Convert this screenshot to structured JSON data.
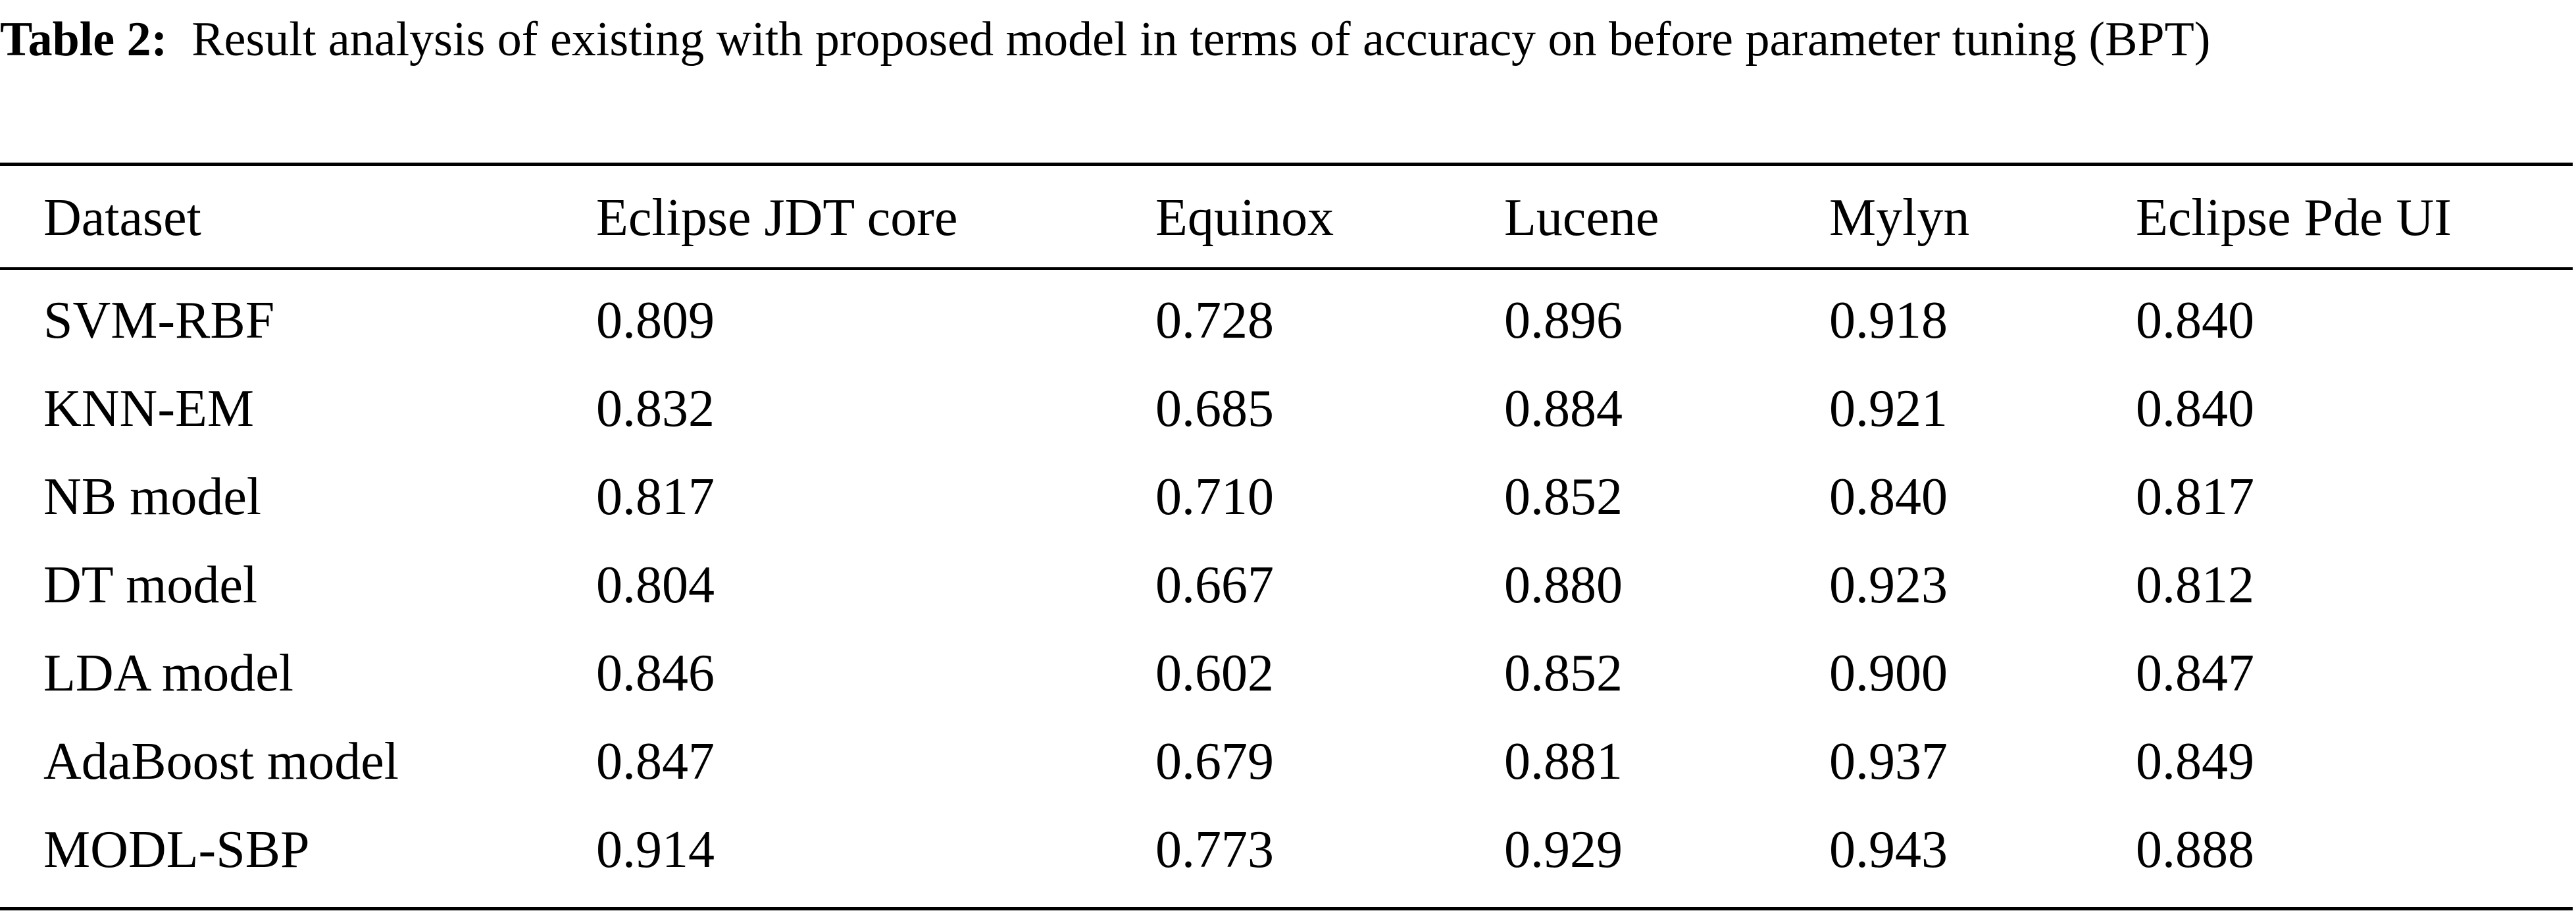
{
  "caption": {
    "label": "Table 2:",
    "text": "Result analysis of existing with proposed model in terms of accuracy on before parameter tuning (BPT)"
  },
  "table": {
    "headers": [
      "Dataset",
      "Eclipse JDT core",
      "Equinox",
      "Lucene",
      "Mylyn",
      "Eclipse Pde UI"
    ],
    "rows": [
      [
        "SVM-RBF",
        "0.809",
        "0.728",
        "0.896",
        "0.918",
        "0.840"
      ],
      [
        "KNN-EM",
        "0.832",
        "0.685",
        "0.884",
        "0.921",
        "0.840"
      ],
      [
        "NB model",
        "0.817",
        "0.710",
        "0.852",
        "0.840",
        "0.817"
      ],
      [
        "DT model",
        "0.804",
        "0.667",
        "0.880",
        "0.923",
        "0.812"
      ],
      [
        "LDA model",
        "0.846",
        "0.602",
        "0.852",
        "0.900",
        "0.847"
      ],
      [
        "AdaBoost model",
        "0.847",
        "0.679",
        "0.881",
        "0.937",
        "0.849"
      ],
      [
        "MODL-SBP",
        "0.914",
        "0.773",
        "0.929",
        "0.943",
        "0.888"
      ]
    ]
  }
}
